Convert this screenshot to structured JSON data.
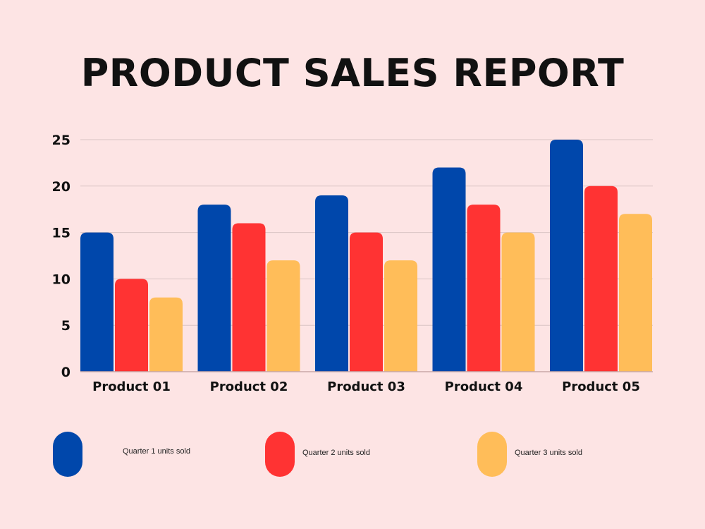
{
  "header": {
    "title": "PRODUCT SALES REPORT"
  },
  "colors": {
    "background": "#fde4e4",
    "gridline": "#d9c4c4",
    "axis": "#c9a8a8",
    "text": "#111111"
  },
  "chart_data": {
    "type": "bar",
    "title": "PRODUCT SALES REPORT",
    "categories": [
      "Product 01",
      "Product 02",
      "Product 03",
      "Product 04",
      "Product 05"
    ],
    "series": [
      {
        "name": "Quarter 1 units sold",
        "color": "#0047ab",
        "values": [
          15,
          18,
          19,
          22,
          25
        ]
      },
      {
        "name": "Quarter 2 units sold",
        "color": "#ff3333",
        "values": [
          10,
          16,
          15,
          18,
          20
        ]
      },
      {
        "name": "Quarter 3 units sold",
        "color": "#ffbd59",
        "values": [
          8,
          12,
          12,
          15,
          17
        ]
      }
    ],
    "yticks": [
      0,
      5,
      10,
      15,
      20,
      25
    ],
    "ylim": [
      0,
      25
    ],
    "xlabel": "",
    "ylabel": "",
    "grid": true,
    "legend_position": "bottom"
  }
}
